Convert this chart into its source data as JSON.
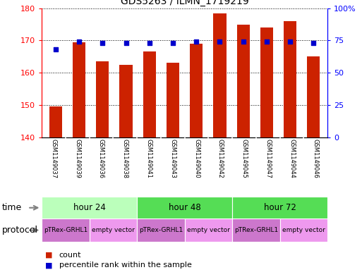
{
  "title": "GDS5263 / ILMN_1719219",
  "samples": [
    "GSM1149037",
    "GSM1149039",
    "GSM1149036",
    "GSM1149038",
    "GSM1149041",
    "GSM1149043",
    "GSM1149040",
    "GSM1149042",
    "GSM1149045",
    "GSM1149047",
    "GSM1149044",
    "GSM1149046"
  ],
  "counts": [
    149.5,
    169.5,
    163.5,
    162.5,
    166.5,
    163.0,
    169.0,
    178.5,
    175.0,
    174.0,
    176.0,
    165.0
  ],
  "percentile_ranks": [
    68,
    74,
    73,
    73,
    73,
    73,
    74,
    74,
    74,
    74,
    74,
    73
  ],
  "ylim_left": [
    140,
    180
  ],
  "ylim_right": [
    0,
    100
  ],
  "yticks_left": [
    140,
    150,
    160,
    170,
    180
  ],
  "yticks_right": [
    0,
    25,
    50,
    75,
    100
  ],
  "ytick_labels_right": [
    "0",
    "25",
    "50",
    "75",
    "100%"
  ],
  "bar_color": "#cc2200",
  "dot_color": "#0000cc",
  "bar_width": 0.55,
  "time_groups": [
    {
      "label": "hour 24",
      "start": 0,
      "end": 4,
      "color": "#bbffbb"
    },
    {
      "label": "hour 48",
      "start": 4,
      "end": 8,
      "color": "#55dd55"
    },
    {
      "label": "hour 72",
      "start": 8,
      "end": 12,
      "color": "#55dd55"
    }
  ],
  "protocol_groups": [
    {
      "label": "pTRex-GRHL1",
      "start": 0,
      "end": 2,
      "color": "#cc77cc"
    },
    {
      "label": "empty vector",
      "start": 2,
      "end": 4,
      "color": "#ee99ee"
    },
    {
      "label": "pTRex-GRHL1",
      "start": 4,
      "end": 6,
      "color": "#cc77cc"
    },
    {
      "label": "empty vector",
      "start": 6,
      "end": 8,
      "color": "#ee99ee"
    },
    {
      "label": "pTRex-GRHL1",
      "start": 8,
      "end": 10,
      "color": "#cc77cc"
    },
    {
      "label": "empty vector",
      "start": 10,
      "end": 12,
      "color": "#ee99ee"
    }
  ],
  "legend_count_color": "#cc2200",
  "legend_dot_color": "#0000cc",
  "bg_color": "#ffffff",
  "sample_bg": "#cccccc",
  "label_left": "time",
  "label_protocol": "protocol"
}
